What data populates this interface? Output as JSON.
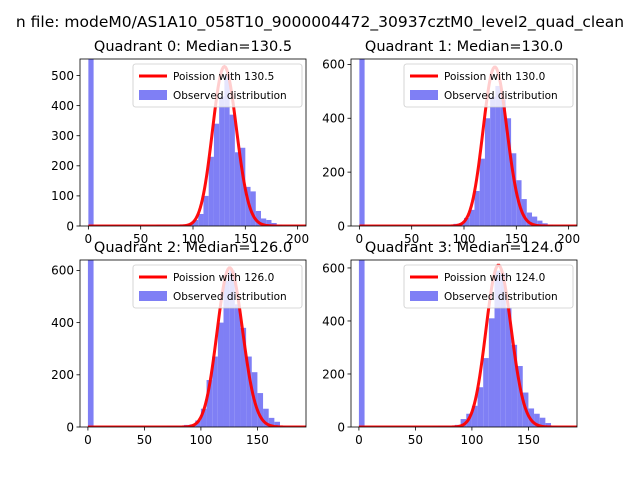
{
  "suptitle": "n file: modeM0/AS1A10_058T10_9000004472_30937cztM0_level2_quad_clean",
  "colors": {
    "hist": "#7f7ff5",
    "poisson": "#ff0000",
    "axes": "#000000"
  },
  "chart_data": [
    {
      "type": "bar",
      "title": "Quadrant 0: Median=130.5",
      "xlim": [
        -8,
        208
      ],
      "ylim": [
        0,
        555
      ],
      "xticks": [
        0,
        50,
        100,
        150,
        200
      ],
      "yticks": [
        0,
        100,
        200,
        300,
        400,
        500
      ],
      "bin_width": 5,
      "hist": [
        [
          0,
          555
        ],
        [
          5,
          2
        ],
        [
          10,
          2
        ],
        [
          15,
          2
        ],
        [
          20,
          2
        ],
        [
          25,
          2
        ],
        [
          30,
          2
        ],
        [
          35,
          2
        ],
        [
          40,
          2
        ],
        [
          45,
          2
        ],
        [
          50,
          2
        ],
        [
          55,
          2
        ],
        [
          60,
          2
        ],
        [
          65,
          5
        ],
        [
          70,
          5
        ],
        [
          75,
          5
        ],
        [
          80,
          5
        ],
        [
          85,
          5
        ],
        [
          90,
          5
        ],
        [
          95,
          8
        ],
        [
          100,
          20
        ],
        [
          105,
          40
        ],
        [
          110,
          100
        ],
        [
          115,
          230
        ],
        [
          120,
          340
        ],
        [
          125,
          430
        ],
        [
          130,
          500
        ],
        [
          135,
          370
        ],
        [
          140,
          245
        ],
        [
          145,
          260
        ],
        [
          150,
          130
        ],
        [
          155,
          115
        ],
        [
          160,
          50
        ],
        [
          165,
          25
        ],
        [
          170,
          20
        ],
        [
          175,
          10
        ],
        [
          180,
          5
        ],
        [
          185,
          2
        ],
        [
          190,
          2
        ],
        [
          195,
          2
        ]
      ],
      "poisson_mean": 130.5,
      "poisson_peak": 530,
      "legend": [
        "Poission with 130.5",
        "Observed distribution"
      ]
    },
    {
      "type": "bar",
      "title": "Quadrant 1: Median=130.0",
      "xlim": [
        -8,
        208
      ],
      "ylim": [
        0,
        620
      ],
      "xticks": [
        0,
        50,
        100,
        150,
        200
      ],
      "yticks": [
        0,
        200,
        400,
        600
      ],
      "bin_width": 5,
      "hist": [
        [
          0,
          620
        ],
        [
          5,
          2
        ],
        [
          10,
          2
        ],
        [
          15,
          2
        ],
        [
          20,
          2
        ],
        [
          25,
          2
        ],
        [
          30,
          2
        ],
        [
          35,
          2
        ],
        [
          40,
          2
        ],
        [
          45,
          2
        ],
        [
          50,
          2
        ],
        [
          55,
          2
        ],
        [
          60,
          2
        ],
        [
          65,
          3
        ],
        [
          70,
          3
        ],
        [
          75,
          3
        ],
        [
          80,
          3
        ],
        [
          85,
          3
        ],
        [
          90,
          8
        ],
        [
          95,
          10
        ],
        [
          100,
          30
        ],
        [
          105,
          60
        ],
        [
          110,
          130
        ],
        [
          115,
          250
        ],
        [
          120,
          400
        ],
        [
          125,
          480
        ],
        [
          130,
          520
        ],
        [
          135,
          470
        ],
        [
          140,
          400
        ],
        [
          145,
          270
        ],
        [
          150,
          170
        ],
        [
          155,
          100
        ],
        [
          160,
          50
        ],
        [
          165,
          35
        ],
        [
          170,
          20
        ],
        [
          175,
          10
        ],
        [
          180,
          5
        ],
        [
          185,
          2
        ],
        [
          190,
          2
        ],
        [
          195,
          2
        ]
      ],
      "poisson_mean": 130.0,
      "poisson_peak": 590,
      "legend": [
        "Poission with 130.0",
        "Observed distribution"
      ]
    },
    {
      "type": "bar",
      "title": "Quadrant 2: Median=126.0",
      "xlim": [
        -7,
        193
      ],
      "ylim": [
        0,
        640
      ],
      "xticks": [
        0,
        50,
        100,
        150
      ],
      "yticks": [
        0,
        200,
        400,
        600
      ],
      "bin_width": 5,
      "hist": [
        [
          0,
          640
        ],
        [
          5,
          2
        ],
        [
          10,
          2
        ],
        [
          15,
          2
        ],
        [
          20,
          2
        ],
        [
          25,
          2
        ],
        [
          30,
          2
        ],
        [
          35,
          2
        ],
        [
          40,
          2
        ],
        [
          45,
          2
        ],
        [
          50,
          2
        ],
        [
          55,
          2
        ],
        [
          60,
          2
        ],
        [
          65,
          3
        ],
        [
          70,
          5
        ],
        [
          75,
          5
        ],
        [
          80,
          5
        ],
        [
          85,
          8
        ],
        [
          90,
          10
        ],
        [
          95,
          25
        ],
        [
          100,
          70
        ],
        [
          105,
          180
        ],
        [
          110,
          270
        ],
        [
          115,
          400
        ],
        [
          120,
          560
        ],
        [
          125,
          600
        ],
        [
          130,
          470
        ],
        [
          135,
          380
        ],
        [
          140,
          270
        ],
        [
          145,
          210
        ],
        [
          150,
          130
        ],
        [
          155,
          70
        ],
        [
          160,
          35
        ],
        [
          165,
          20
        ],
        [
          170,
          5
        ],
        [
          175,
          2
        ],
        [
          180,
          2
        ]
      ],
      "poisson_mean": 126.0,
      "poisson_peak": 610,
      "legend": [
        "Poission with 126.0",
        "Observed distribution"
      ]
    },
    {
      "type": "bar",
      "title": "Quadrant 3: Median=124.0",
      "xlim": [
        -7,
        193
      ],
      "ylim": [
        0,
        630
      ],
      "xticks": [
        0,
        50,
        100,
        150
      ],
      "yticks": [
        0,
        200,
        400,
        600
      ],
      "bin_width": 5,
      "hist": [
        [
          0,
          630
        ],
        [
          5,
          2
        ],
        [
          10,
          2
        ],
        [
          15,
          2
        ],
        [
          20,
          2
        ],
        [
          25,
          2
        ],
        [
          30,
          2
        ],
        [
          35,
          2
        ],
        [
          40,
          2
        ],
        [
          45,
          2
        ],
        [
          50,
          2
        ],
        [
          55,
          2
        ],
        [
          60,
          2
        ],
        [
          65,
          3
        ],
        [
          70,
          5
        ],
        [
          75,
          5
        ],
        [
          80,
          5
        ],
        [
          85,
          8
        ],
        [
          90,
          30
        ],
        [
          95,
          50
        ],
        [
          100,
          80
        ],
        [
          105,
          150
        ],
        [
          110,
          260
        ],
        [
          115,
          410
        ],
        [
          120,
          590
        ],
        [
          125,
          580
        ],
        [
          130,
          450
        ],
        [
          135,
          310
        ],
        [
          140,
          230
        ],
        [
          145,
          130
        ],
        [
          150,
          70
        ],
        [
          155,
          50
        ],
        [
          160,
          35
        ],
        [
          165,
          15
        ],
        [
          170,
          5
        ],
        [
          175,
          2
        ],
        [
          180,
          2
        ]
      ],
      "poisson_mean": 124.0,
      "poisson_peak": 610,
      "legend": [
        "Poission with 124.0",
        "Observed distribution"
      ]
    }
  ]
}
